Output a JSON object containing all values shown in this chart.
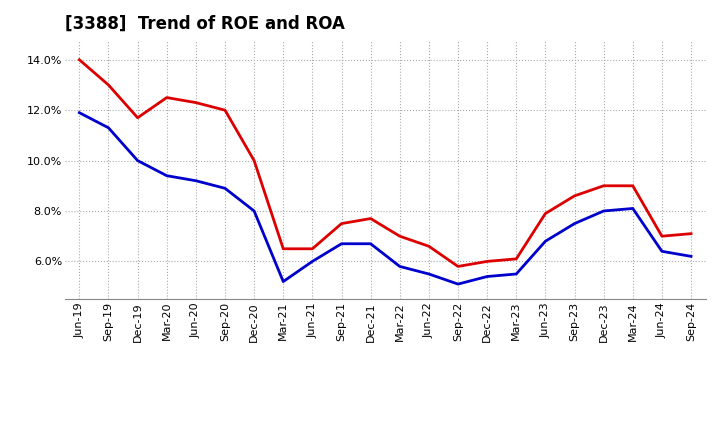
{
  "title": "[3388]  Trend of ROE and ROA",
  "x_labels": [
    "Jun-19",
    "Sep-19",
    "Dec-19",
    "Mar-20",
    "Jun-20",
    "Sep-20",
    "Dec-20",
    "Mar-21",
    "Jun-21",
    "Sep-21",
    "Dec-21",
    "Mar-22",
    "Jun-22",
    "Sep-22",
    "Dec-22",
    "Mar-23",
    "Jun-23",
    "Sep-23",
    "Dec-23",
    "Mar-24",
    "Jun-24",
    "Sep-24"
  ],
  "roe": [
    14.0,
    13.0,
    11.7,
    12.5,
    12.3,
    12.0,
    10.0,
    6.5,
    6.5,
    7.5,
    7.7,
    7.0,
    6.6,
    5.8,
    6.0,
    6.1,
    7.9,
    8.6,
    9.0,
    9.0,
    7.0,
    7.1
  ],
  "roa": [
    11.9,
    11.3,
    10.0,
    9.4,
    9.2,
    8.9,
    8.0,
    5.2,
    6.0,
    6.7,
    6.7,
    5.8,
    5.5,
    5.1,
    5.4,
    5.5,
    6.8,
    7.5,
    8.0,
    8.1,
    6.4,
    6.2
  ],
  "roe_color": "#dd0000",
  "roa_color": "#0000cc",
  "ylim": [
    4.5,
    14.8
  ],
  "yticks": [
    6.0,
    8.0,
    10.0,
    12.0,
    14.0
  ],
  "background_color": "#ffffff",
  "grid_color": "#aaaaaa",
  "line_width": 2.0,
  "title_fontsize": 12,
  "tick_fontsize": 8
}
